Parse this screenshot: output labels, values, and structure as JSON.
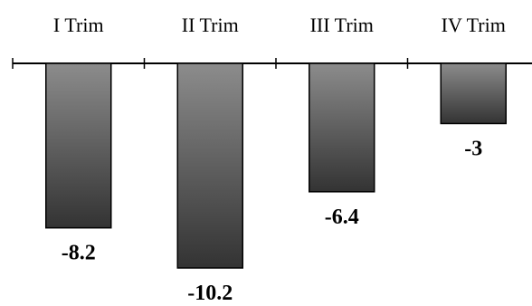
{
  "chart_data": {
    "type": "bar",
    "categories": [
      "I Trim",
      "II Trim",
      "III Trim",
      "IV Trim"
    ],
    "values": [
      -8.2,
      -10.2,
      -6.4,
      -3
    ],
    "value_labels": [
      "-8.2",
      "-10.2",
      "-6.4",
      "-3"
    ],
    "ylim": [
      -10.2,
      0
    ],
    "grid": false,
    "legend": "none",
    "bar_colors": {
      "gradient_top": "#8c8c8c",
      "gradient_bottom": "#333333",
      "stroke": "#000000"
    }
  }
}
